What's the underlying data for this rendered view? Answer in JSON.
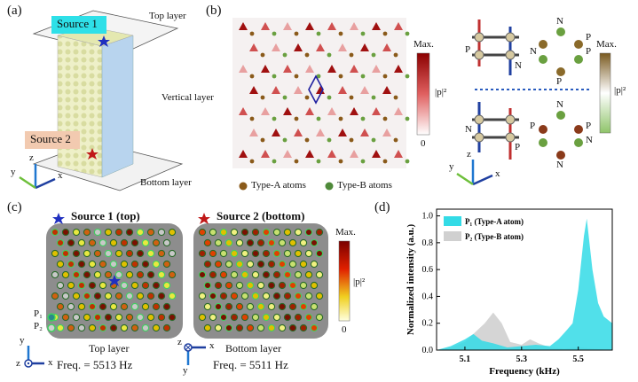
{
  "panel_labels": {
    "a": "(a)",
    "b": "(b)",
    "c": "(c)",
    "d": "(d)"
  },
  "panel_a": {
    "source1": "Source 1",
    "source2": "Source 2",
    "top_layer": "Top layer",
    "vertical_layer": "Vertical layer",
    "bottom_layer": "Bottom layer",
    "axes": {
      "x": "x",
      "y": "y",
      "z": "z"
    }
  },
  "panel_b": {
    "colorbar_max": "Max.",
    "colorbar_min": "0",
    "colorbar_label": "|p|²",
    "legend_type_a": "Type-A atoms",
    "legend_type_b": "Type-B atoms",
    "right_colorbar_max": "Max.",
    "right_colorbar_label": "|p|²",
    "n_label": "N",
    "p_label": "P",
    "axes": {
      "x": "x",
      "y": "y",
      "z": "z"
    },
    "colors": {
      "type_a": "#8a5a1a",
      "type_b": "#4f8a3a"
    }
  },
  "panel_c": {
    "title_left": "Source 1 (top)",
    "title_right": "Source 2 (bottom)",
    "left_caption": "Top layer",
    "right_caption": "Bottom layer",
    "left_freq": "Freq. = 5513 Hz",
    "right_freq": "Freq. = 5511 Hz",
    "p1": "P₁",
    "p2": "P₂",
    "colorbar_max": "Max.",
    "colorbar_min": "0",
    "colorbar_label": "|p|²",
    "axes": {
      "x": "x",
      "y": "y",
      "z": "z"
    }
  },
  "chart_data": {
    "type": "area",
    "xlabel": "Frequency (kHz)",
    "ylabel": "Normalized intensity (a.u.)",
    "xlim": [
      5.0,
      5.62
    ],
    "ylim": [
      0,
      1.05
    ],
    "xticks": [
      "5.1",
      "5.3",
      "5.5"
    ],
    "yticks": [
      "0.0",
      "0.2",
      "0.4",
      "0.6",
      "0.8",
      "1.0"
    ],
    "legend_placement": "top-left",
    "series": [
      {
        "name": "P₁ (Type-A atom)",
        "color": "#33dbe6",
        "x": [
          5.0,
          5.05,
          5.1,
          5.13,
          5.16,
          5.2,
          5.25,
          5.3,
          5.35,
          5.4,
          5.43,
          5.46,
          5.48,
          5.5,
          5.52,
          5.53,
          5.55,
          5.57,
          5.59,
          5.62
        ],
        "y": [
          0.0,
          0.03,
          0.08,
          0.12,
          0.07,
          0.05,
          0.02,
          0.03,
          0.04,
          0.03,
          0.08,
          0.15,
          0.2,
          0.45,
          0.85,
          0.98,
          0.6,
          0.35,
          0.25,
          0.2
        ]
      },
      {
        "name": "P₂ (Type-B atom)",
        "color": "#d0d0d0",
        "x": [
          5.0,
          5.05,
          5.1,
          5.14,
          5.17,
          5.2,
          5.23,
          5.26,
          5.3,
          5.33,
          5.36,
          5.4,
          5.45,
          5.5,
          5.55,
          5.62
        ],
        "y": [
          0.0,
          0.02,
          0.06,
          0.14,
          0.2,
          0.28,
          0.2,
          0.06,
          0.04,
          0.08,
          0.05,
          0.02,
          0.01,
          0.02,
          0.01,
          0.0
        ]
      }
    ]
  }
}
